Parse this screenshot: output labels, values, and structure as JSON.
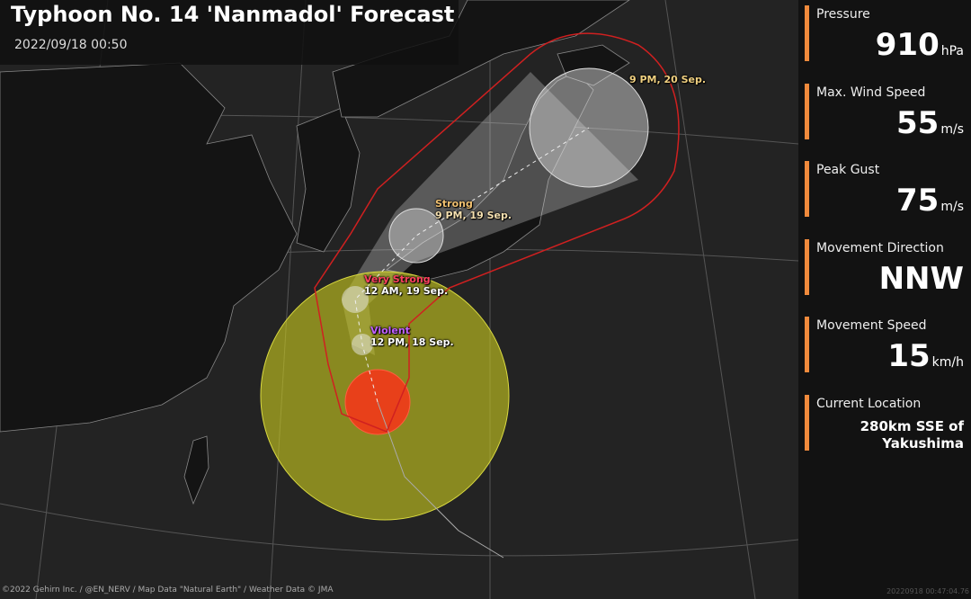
{
  "header": {
    "title": "Typhoon No. 14 'Nanmadol' Forecast",
    "datetime": "2022/09/18 00:50"
  },
  "colors": {
    "storm_zone": "#c8c81e",
    "gale_zone": "#e8401a",
    "forecast_circle": "#e0e0e0",
    "warning_outline": "#d02020",
    "accent_bar": "#f08a3c",
    "violent": "#c060ff",
    "very_strong": "#ff4060",
    "strong": "#f0c070"
  },
  "forecast_labels": [
    {
      "intensity": "",
      "time": "9 PM, 20 Sep."
    },
    {
      "intensity": "Strong",
      "time": "9 PM, 19 Sep."
    },
    {
      "intensity": "Very Strong",
      "time": "12 AM, 19 Sep."
    },
    {
      "intensity": "Violent",
      "time": "12 PM, 18 Sep."
    }
  ],
  "stats": {
    "pressure": {
      "label": "Pressure",
      "value": "910",
      "unit": "hPa"
    },
    "wind": {
      "label": "Max. Wind Speed",
      "value": "55",
      "unit": "m/s"
    },
    "gust": {
      "label": "Peak Gust",
      "value": "75",
      "unit": "m/s"
    },
    "direction": {
      "label": "Movement Direction",
      "value": "NNW"
    },
    "speed": {
      "label": "Movement Speed",
      "value": "15",
      "unit": "km/h"
    },
    "location": {
      "label": "Current Location",
      "line1": "280km SSE of",
      "line2": "Yakushima"
    }
  },
  "footer": {
    "credit": "©2022 Gehirn Inc. / @EN_NERV / Map Data \"Natural Earth\" / Weather Data © JMA",
    "stamp": "20220918 00:47:04.76"
  }
}
